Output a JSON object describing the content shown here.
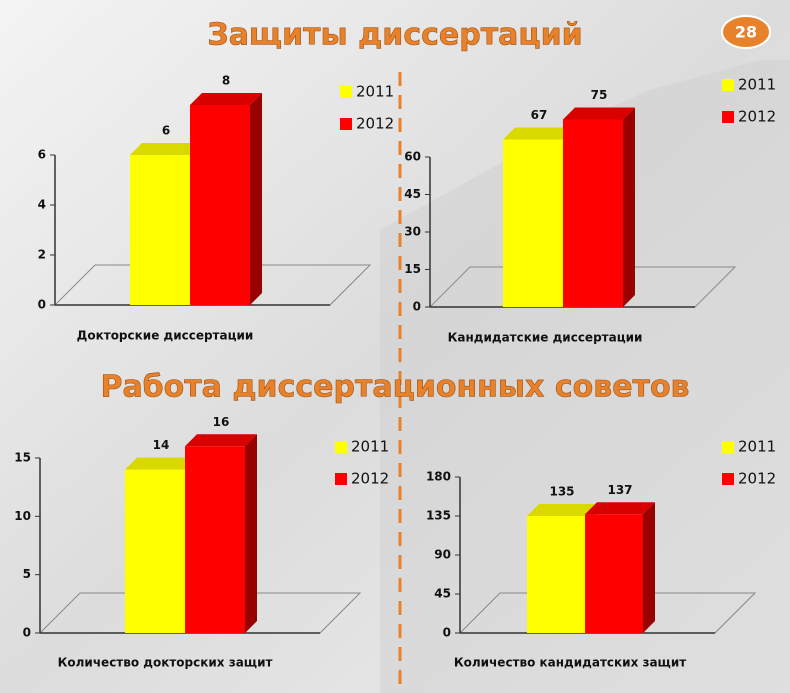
{
  "slide": {
    "title_top": "Защиты диссертаций",
    "title_bottom": "Работа диссертационных советов",
    "page_number": "28"
  },
  "chart_data": [
    {
      "type": "bar",
      "categories": [
        "Докторские диссертации"
      ],
      "ylim": [
        0,
        8
      ],
      "yticks": [
        0,
        2,
        4,
        6
      ],
      "series": [
        {
          "name": "2011",
          "color": "#ffff00",
          "values": [
            6
          ]
        },
        {
          "name": "2012",
          "color": "#ff0000",
          "values": [
            8
          ]
        }
      ]
    },
    {
      "type": "bar",
      "categories": [
        "Кандидатские диссертации"
      ],
      "ylim": [
        0,
        75
      ],
      "yticks": [
        0,
        15,
        30,
        45,
        60
      ],
      "series": [
        {
          "name": "2011",
          "color": "#ffff00",
          "values": [
            67
          ]
        },
        {
          "name": "2012",
          "color": "#ff0000",
          "values": [
            75
          ]
        }
      ]
    },
    {
      "type": "bar",
      "categories": [
        "Количество докторских защит"
      ],
      "ylim": [
        0,
        16
      ],
      "yticks": [
        0,
        5,
        10,
        15
      ],
      "series": [
        {
          "name": "2011",
          "color": "#ffff00",
          "values": [
            14
          ]
        },
        {
          "name": "2012",
          "color": "#ff0000",
          "values": [
            16
          ]
        }
      ]
    },
    {
      "type": "bar",
      "categories": [
        "Количество кандидатских защит"
      ],
      "ylim": [
        0,
        180
      ],
      "yticks": [
        0,
        45,
        90,
        135,
        180
      ],
      "series": [
        {
          "name": "2011",
          "color": "#ffff00",
          "values": [
            135
          ]
        },
        {
          "name": "2012",
          "color": "#ff0000",
          "values": [
            137
          ]
        }
      ]
    }
  ]
}
